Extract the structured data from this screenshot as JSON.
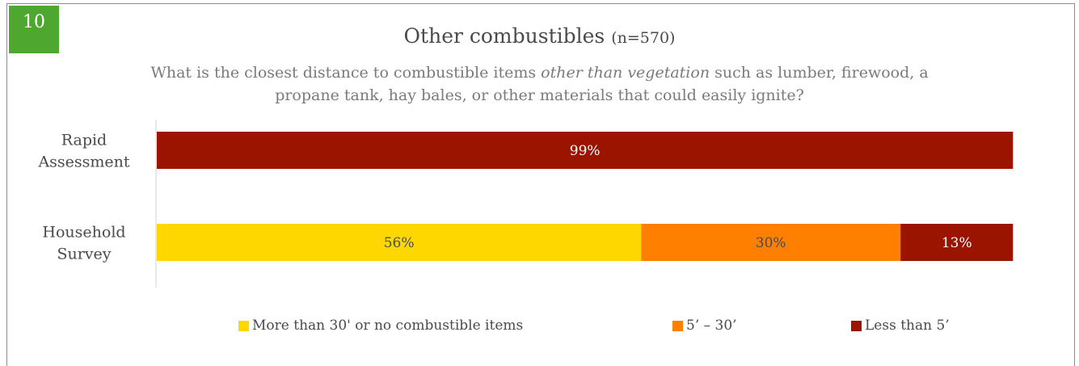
{
  "badge": "10",
  "title_main": "Other combustibles",
  "title_n": "(n=570)",
  "subtitle_parts": [
    "What is the closest distance to combustible items ",
    "other than vegetation",
    " such as lumber, firewood, a propane tank, hay bales, or other materials that could easily ignite?"
  ],
  "chart_data": {
    "type": "bar",
    "orientation": "horizontal",
    "stacked": true,
    "categories": [
      "Rapid Assessment",
      "Household Survey"
    ],
    "series": [
      {
        "name": "More than 30' or no combustible items",
        "color": "#ffd700",
        "values": [
          0,
          56
        ],
        "labels": [
          "",
          "56%"
        ]
      },
      {
        "name": "5’ – 30’",
        "color": "#ff7f00",
        "values": [
          0,
          30
        ],
        "labels": [
          "",
          "30%"
        ]
      },
      {
        "name": "Less than 5’",
        "color": "#9b1400",
        "values": [
          99,
          13
        ],
        "labels": [
          "99%",
          "13%"
        ]
      }
    ],
    "legend_position": "bottom",
    "grid": false
  }
}
